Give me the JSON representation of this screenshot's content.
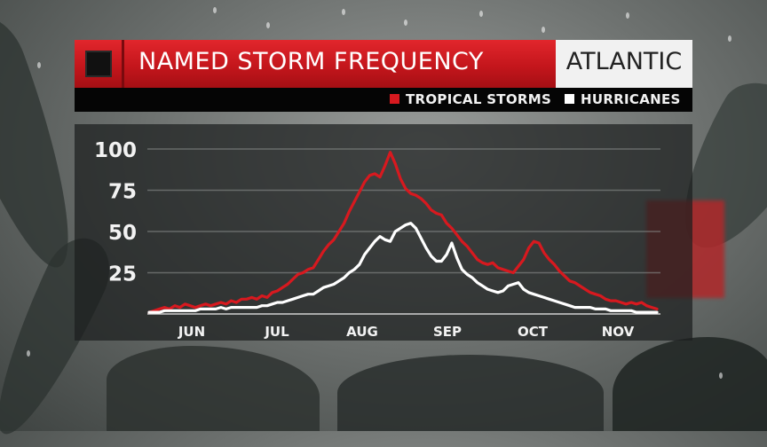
{
  "header": {
    "title": "NAMED STORM FREQUENCY",
    "region": "ATLANTIC"
  },
  "legend": [
    {
      "label": "TROPICAL STORMS",
      "color": "#d7191f"
    },
    {
      "label": "HURRICANES",
      "color": "#ffffff"
    }
  ],
  "colors": {
    "title_bar": "#c4161c",
    "tropical_storms": "#d7191f",
    "hurricanes": "#ffffff"
  },
  "chart_data": {
    "type": "line",
    "title": "NAMED STORM FREQUENCY",
    "xlabel": "",
    "ylabel": "",
    "x_tick_labels": [
      "JUN",
      "JUL",
      "AUG",
      "SEP",
      "OCT",
      "NOV"
    ],
    "y_ticks": [
      25,
      50,
      75,
      100
    ],
    "ylim": [
      0,
      100
    ],
    "grid": true,
    "x_start": "Jun 1",
    "x_end": "Nov 30",
    "series": [
      {
        "name": "TROPICAL STORMS",
        "color": "#d7191f",
        "values": [
          1,
          2,
          3,
          4,
          3,
          5,
          4,
          6,
          5,
          4,
          5,
          6,
          5,
          6,
          7,
          6,
          8,
          7,
          9,
          9,
          10,
          9,
          11,
          10,
          13,
          14,
          16,
          18,
          21,
          24,
          25,
          27,
          28,
          33,
          38,
          42,
          45,
          50,
          55,
          62,
          68,
          74,
          80,
          84,
          85,
          83,
          90,
          98,
          91,
          82,
          76,
          73,
          72,
          70,
          67,
          63,
          61,
          60,
          55,
          52,
          48,
          44,
          41,
          37,
          33,
          31,
          30,
          31,
          28,
          27,
          26,
          25,
          29,
          33,
          40,
          44,
          43,
          37,
          33,
          30,
          26,
          23,
          20,
          19,
          17,
          15,
          13,
          12,
          11,
          9,
          8,
          8,
          7,
          6,
          7,
          6,
          7,
          5,
          4,
          3
        ]
      },
      {
        "name": "HURRICANES",
        "color": "#ffffff",
        "values": [
          1,
          1,
          1,
          2,
          2,
          2,
          2,
          2,
          2,
          2,
          3,
          3,
          3,
          3,
          4,
          3,
          4,
          4,
          4,
          4,
          4,
          4,
          5,
          5,
          6,
          7,
          7,
          8,
          9,
          10,
          11,
          12,
          12,
          14,
          16,
          17,
          18,
          20,
          22,
          25,
          27,
          30,
          36,
          40,
          44,
          47,
          45,
          44,
          50,
          52,
          54,
          55,
          52,
          46,
          40,
          35,
          32,
          32,
          36,
          43,
          34,
          27,
          24,
          22,
          19,
          17,
          15,
          14,
          13,
          14,
          17,
          18,
          19,
          15,
          13,
          12,
          11,
          10,
          9,
          8,
          7,
          6,
          5,
          4,
          4,
          4,
          4,
          3,
          3,
          3,
          2,
          2,
          2,
          2,
          2,
          1,
          1,
          1,
          1,
          1
        ]
      }
    ]
  }
}
